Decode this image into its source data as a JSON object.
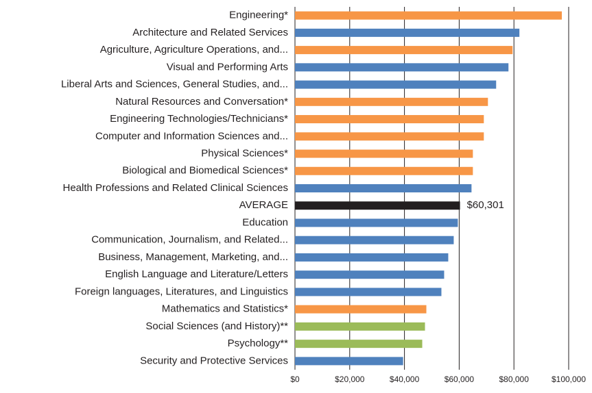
{
  "chart_data": {
    "type": "bar",
    "orientation": "horizontal",
    "categories": [
      "Engineering*",
      "Architecture and Related Services",
      "Agriculture, Agriculture Operations, and...",
      "Visual and Performing Arts",
      "Liberal Arts and Sciences, General Studies, and...",
      "Natural Resources and Conversation*",
      "Engineering Technologies/Technicians*",
      "Computer and Information Sciences and...",
      "Physical Sciences*",
      "Biological and Biomedical Sciences*",
      "Health Professions and Related Clinical Sciences",
      "AVERAGE",
      "Education",
      "Communication, Journalism, and Related...",
      "Business, Management, Marketing, and...",
      "English Language and Literature/Letters",
      "Foreign languages, Literatures, and Linguistics",
      "Mathematics and Statistics*",
      "Social Sciences (and History)**",
      "Psychology**",
      "Security and Protective Services"
    ],
    "values": [
      97500,
      82000,
      79500,
      78000,
      73500,
      70500,
      69000,
      69000,
      65000,
      65000,
      64500,
      60301,
      59500,
      58000,
      56000,
      54500,
      53500,
      48000,
      47500,
      46500,
      39500
    ],
    "value_labels": [
      null,
      null,
      null,
      null,
      null,
      null,
      null,
      null,
      null,
      null,
      null,
      "$60,301",
      null,
      null,
      null,
      null,
      null,
      null,
      null,
      null,
      null
    ],
    "colors": [
      "#f79646",
      "#4f81bd",
      "#f79646",
      "#4f81bd",
      "#4f81bd",
      "#f79646",
      "#f79646",
      "#f79646",
      "#f79646",
      "#f79646",
      "#4f81bd",
      "#231f20",
      "#4f81bd",
      "#4f81bd",
      "#4f81bd",
      "#4f81bd",
      "#4f81bd",
      "#f79646",
      "#9bbb59",
      "#9bbb59",
      "#4f81bd"
    ],
    "xlim": [
      0,
      100000
    ],
    "xticks": [
      {
        "value": 0,
        "label": "$0"
      },
      {
        "value": 20000,
        "label": "$20,000"
      },
      {
        "value": 40000,
        "label": "$40,000"
      },
      {
        "value": 60000,
        "label": "$60,000"
      },
      {
        "value": 80000,
        "label": "$80,000"
      },
      {
        "value": 100000,
        "label": "$100,000"
      }
    ],
    "grid": true
  }
}
